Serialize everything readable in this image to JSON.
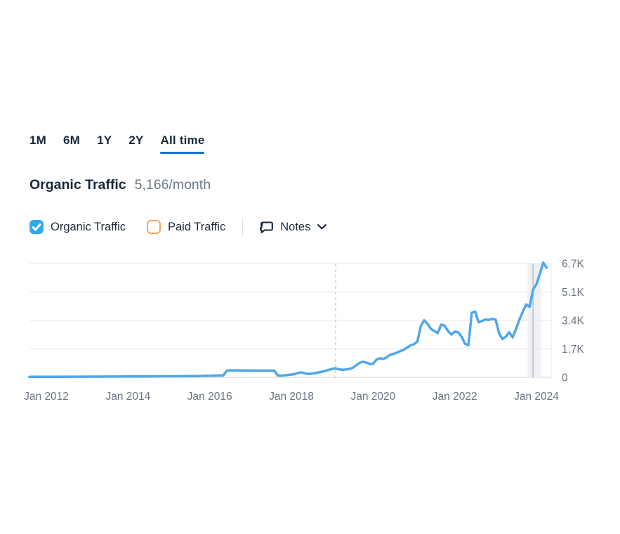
{
  "tabs": {
    "items": [
      {
        "label": "1M",
        "active": false
      },
      {
        "label": "6M",
        "active": false
      },
      {
        "label": "1Y",
        "active": false
      },
      {
        "label": "2Y",
        "active": false
      },
      {
        "label": "All time",
        "active": true
      }
    ]
  },
  "header": {
    "title": "Organic Traffic",
    "value": "5,166/month"
  },
  "legend": {
    "organic": {
      "label": "Organic Traffic",
      "checked": true,
      "color": "#2fa9ee"
    },
    "paid": {
      "label": "Paid Traffic",
      "checked": false,
      "border_color": "#f7a35c"
    },
    "notes": {
      "label": "Notes"
    }
  },
  "colors": {
    "tab_underline": "#1673cf",
    "line": "#4fa7ea",
    "grid": "#e9ebee",
    "zero_line": "#d8dbe0",
    "dashed_line": "#c8ccd2",
    "band_fill": "#e9ebed",
    "band_marker": "#b6bcc3",
    "axis_text": "#6b7482",
    "dark_text": "#17293b"
  },
  "chart_data": {
    "type": "line",
    "title": "Organic Traffic",
    "xlabel": "",
    "ylabel": "",
    "grid": "horizontal",
    "legend_position": "none",
    "y_max": 6700,
    "y_ticks": [
      {
        "label": "0",
        "value": 0
      },
      {
        "label": "1.7K",
        "value": 1675
      },
      {
        "label": "3.4K",
        "value": 3350
      },
      {
        "label": "5.1K",
        "value": 5025
      },
      {
        "label": "6.7K",
        "value": 6700
      }
    ],
    "x_ticks": [
      {
        "label": "Jan 2012",
        "month_index": 5
      },
      {
        "label": "Jan 2014",
        "month_index": 29
      },
      {
        "label": "Jan 2016",
        "month_index": 53
      },
      {
        "label": "Jan 2018",
        "month_index": 77
      },
      {
        "label": "Jan 2020",
        "month_index": 101
      },
      {
        "label": "Jan 2022",
        "month_index": 125
      },
      {
        "label": "Jan 2024",
        "month_index": 149
      }
    ],
    "series": [
      {
        "name": "Organic Traffic",
        "color": "#4fa7ea",
        "start_month": "2011-08",
        "interval": "monthly",
        "values": [
          25,
          27,
          28,
          30,
          31,
          33,
          34,
          33,
          35,
          36,
          35,
          37,
          36,
          38,
          37,
          39,
          40,
          39,
          41,
          40,
          42,
          43,
          42,
          44,
          45,
          44,
          46,
          47,
          48,
          50,
          49,
          51,
          53,
          52,
          54,
          56,
          55,
          57,
          59,
          58,
          60,
          62,
          64,
          63,
          66,
          68,
          70,
          69,
          72,
          75,
          78,
          82,
          86,
          92,
          98,
          104,
          110,
          115,
          390,
          415,
          410,
          408,
          405,
          402,
          400,
          398,
          396,
          395,
          394,
          393,
          392,
          391,
          390,
          110,
          100,
          120,
          140,
          160,
          190,
          260,
          290,
          230,
          200,
          220,
          250,
          290,
          330,
          380,
          440,
          500,
          520,
          470,
          440,
          460,
          490,
          560,
          700,
          850,
          920,
          870,
          790,
          800,
          1040,
          1120,
          1080,
          1180,
          1320,
          1380,
          1450,
          1540,
          1620,
          1750,
          1880,
          1950,
          2100,
          3000,
          3360,
          3150,
          2850,
          2730,
          2600,
          3100,
          3050,
          2730,
          2520,
          2690,
          2650,
          2390,
          1980,
          1890,
          3800,
          3870,
          3240,
          3320,
          3400,
          3380,
          3440,
          3400,
          2600,
          2250,
          2400,
          2650,
          2350,
          2850,
          3400,
          3870,
          4290,
          4150,
          5166,
          5480,
          6100,
          6750,
          6450
        ]
      }
    ],
    "annotations": {
      "dashed_line_month_index": 90,
      "highlight_band": {
        "start_index": 146.4,
        "end_index": 150.3,
        "marker_index": 148,
        "marker_value": 5166
      }
    }
  }
}
